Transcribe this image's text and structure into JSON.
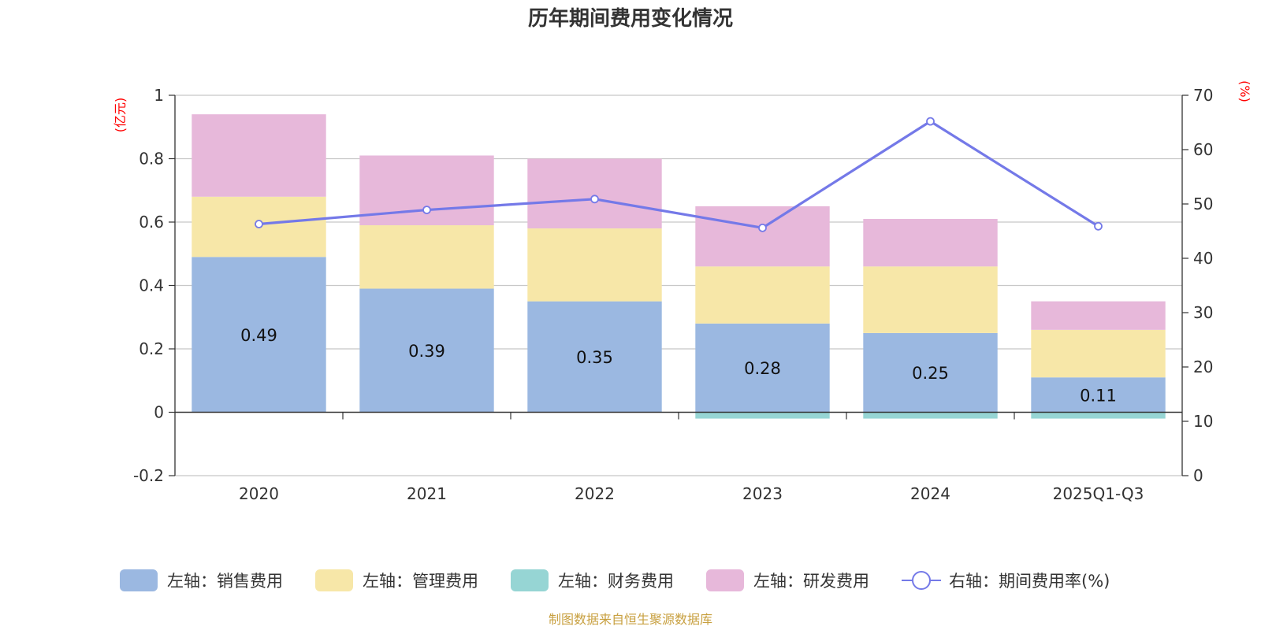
{
  "chart_data": {
    "type": "bar",
    "stacked": true,
    "title": "历年期间费用变化情况",
    "categories": [
      "2020",
      "2021",
      "2022",
      "2023",
      "2024",
      "2025Q1-Q3"
    ],
    "left_axis": {
      "unit": "(亿元)",
      "ylim": [
        -0.2,
        1
      ],
      "ticks": [
        -0.2,
        0,
        0.2,
        0.4,
        0.6,
        0.8,
        1
      ]
    },
    "right_axis": {
      "unit": "(%)",
      "ylim": [
        0,
        70
      ],
      "ticks": [
        0,
        10,
        20,
        30,
        40,
        50,
        60,
        70
      ]
    },
    "series": [
      {
        "name": "左轴：销售费用",
        "axis": "left",
        "color": "#9bb8e1",
        "values": [
          0.49,
          0.39,
          0.35,
          0.28,
          0.25,
          0.11
        ],
        "show_labels": true
      },
      {
        "name": "左轴：管理费用",
        "axis": "left",
        "color": "#f7e7a8",
        "values": [
          0.19,
          0.2,
          0.23,
          0.18,
          0.21,
          0.15
        ],
        "show_labels": false
      },
      {
        "name": "左轴：财务费用",
        "axis": "left",
        "color": "#96d5d4",
        "values": [
          0.0,
          0.0,
          0.0,
          -0.02,
          -0.02,
          -0.02
        ],
        "show_labels": false
      },
      {
        "name": "左轴：研发费用",
        "axis": "left",
        "color": "#e7b8da",
        "values": [
          0.26,
          0.22,
          0.22,
          0.19,
          0.15,
          0.09
        ],
        "show_labels": false
      }
    ],
    "line_series": {
      "name": "右轴：期间费用率(%)",
      "axis": "right",
      "color": "#7479e8",
      "values": [
        46.3,
        48.9,
        50.9,
        45.6,
        65.2,
        45.9
      ]
    },
    "grid": true,
    "legend_position": "bottom"
  },
  "source_note": "制图数据来自恒生聚源数据库"
}
